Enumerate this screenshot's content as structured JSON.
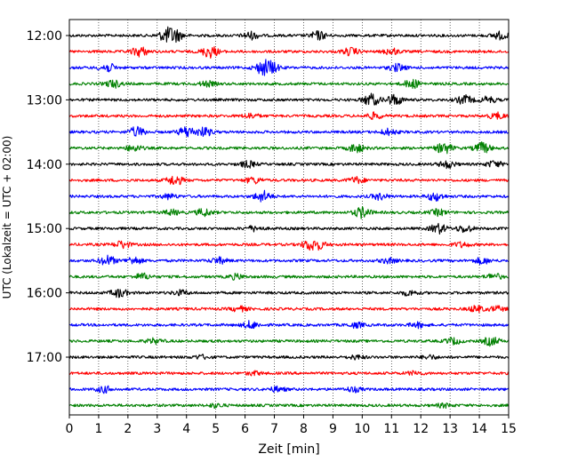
{
  "chart_data": {
    "type": "line",
    "xlabel": "Zeit  [min]",
    "ylabel": "UTC (Lokalzeit = UTC + 02:00)",
    "xlim": [
      0,
      15
    ],
    "x_ticks": [
      0,
      1,
      2,
      3,
      4,
      5,
      6,
      7,
      8,
      9,
      10,
      11,
      12,
      13,
      14,
      15
    ],
    "x_tick_labels": [
      "0",
      "1",
      "2",
      "3",
      "4",
      "5",
      "6",
      "7",
      "8",
      "9",
      "10",
      "11",
      "12",
      "13",
      "14",
      "15"
    ],
    "y_tick_labels": [
      "12:00",
      "13:00",
      "14:00",
      "15:00",
      "16:00",
      "17:00"
    ],
    "y_tick_rows": [
      0,
      4,
      8,
      12,
      16,
      20
    ],
    "row_minutes": 15,
    "row_count": 24,
    "row_colors": [
      "#000000",
      "#ff0000",
      "#0000ff",
      "#008000"
    ],
    "vertical_grid": "dotted",
    "horizontal_grid": false,
    "legend": "none",
    "series": [
      {
        "row": 0,
        "start": "12:00",
        "events": [
          [
            3.3,
            0.9
          ],
          [
            3.6,
            1.0
          ],
          [
            6.2,
            0.6
          ],
          [
            8.5,
            0.7
          ],
          [
            14.7,
            0.6
          ]
        ]
      },
      {
        "row": 1,
        "start": "12:15",
        "events": [
          [
            2.4,
            0.8
          ],
          [
            4.8,
            1.0
          ],
          [
            9.6,
            0.6
          ],
          [
            11.0,
            0.5
          ]
        ]
      },
      {
        "row": 2,
        "start": "12:30",
        "events": [
          [
            1.3,
            0.7
          ],
          [
            6.6,
            1.0
          ],
          [
            6.9,
            0.8
          ],
          [
            11.2,
            0.6
          ]
        ]
      },
      {
        "row": 3,
        "start": "12:45",
        "events": [
          [
            1.5,
            0.6
          ],
          [
            4.7,
            0.4
          ],
          [
            11.7,
            0.7
          ]
        ]
      },
      {
        "row": 4,
        "start": "13:00",
        "events": [
          [
            10.3,
            1.0
          ],
          [
            11.1,
            0.9
          ],
          [
            13.5,
            0.7
          ],
          [
            14.3,
            0.5
          ]
        ]
      },
      {
        "row": 5,
        "start": "13:15",
        "events": [
          [
            6.2,
            0.4
          ],
          [
            10.4,
            0.5
          ],
          [
            14.6,
            0.5
          ]
        ]
      },
      {
        "row": 6,
        "start": "13:30",
        "events": [
          [
            2.3,
            0.8
          ],
          [
            4.0,
            0.9
          ],
          [
            4.6,
            0.7
          ],
          [
            10.9,
            0.5
          ]
        ]
      },
      {
        "row": 7,
        "start": "13:45",
        "events": [
          [
            2.2,
            0.5
          ],
          [
            9.8,
            0.7
          ],
          [
            12.8,
            0.9
          ],
          [
            14.1,
            0.9
          ]
        ]
      },
      {
        "row": 8,
        "start": "14:00",
        "events": [
          [
            6.1,
            0.5
          ],
          [
            12.9,
            0.6
          ],
          [
            14.5,
            0.5
          ]
        ]
      },
      {
        "row": 9,
        "start": "14:15",
        "events": [
          [
            3.6,
            0.8
          ],
          [
            6.3,
            0.5
          ],
          [
            9.8,
            0.5
          ]
        ]
      },
      {
        "row": 10,
        "start": "14:30",
        "events": [
          [
            3.4,
            0.4
          ],
          [
            6.6,
            0.9
          ],
          [
            10.6,
            0.5
          ],
          [
            12.5,
            0.7
          ]
        ]
      },
      {
        "row": 11,
        "start": "14:45",
        "events": [
          [
            3.5,
            0.4
          ],
          [
            4.6,
            0.6
          ],
          [
            10.0,
            0.9
          ],
          [
            12.6,
            0.5
          ]
        ]
      },
      {
        "row": 12,
        "start": "15:00",
        "events": [
          [
            6.3,
            0.4
          ],
          [
            12.6,
            0.8
          ],
          [
            13.5,
            0.6
          ]
        ]
      },
      {
        "row": 13,
        "start": "15:15",
        "events": [
          [
            1.8,
            0.6
          ],
          [
            8.2,
            0.7
          ],
          [
            8.5,
            0.6
          ],
          [
            13.4,
            0.4
          ]
        ]
      },
      {
        "row": 14,
        "start": "15:30",
        "events": [
          [
            1.3,
            0.8
          ],
          [
            2.2,
            0.6
          ],
          [
            5.1,
            0.5
          ],
          [
            10.9,
            0.4
          ],
          [
            14.1,
            0.5
          ]
        ]
      },
      {
        "row": 15,
        "start": "15:45",
        "events": [
          [
            2.5,
            0.5
          ],
          [
            5.7,
            0.4
          ],
          [
            14.5,
            0.5
          ]
        ]
      },
      {
        "row": 16,
        "start": "16:00",
        "events": [
          [
            1.7,
            0.7
          ],
          [
            3.8,
            0.4
          ],
          [
            11.6,
            0.4
          ]
        ]
      },
      {
        "row": 17,
        "start": "16:15",
        "events": [
          [
            5.8,
            0.4
          ],
          [
            13.9,
            0.5
          ],
          [
            14.6,
            0.4
          ]
        ]
      },
      {
        "row": 18,
        "start": "16:30",
        "events": [
          [
            6.2,
            0.6
          ],
          [
            9.8,
            0.4
          ],
          [
            11.9,
            0.4
          ]
        ]
      },
      {
        "row": 19,
        "start": "16:45",
        "events": [
          [
            2.9,
            0.4
          ],
          [
            13.1,
            0.5
          ],
          [
            14.4,
            0.7
          ]
        ]
      },
      {
        "row": 20,
        "start": "17:00",
        "events": [
          [
            4.5,
            0.3
          ],
          [
            9.8,
            0.3
          ],
          [
            12.3,
            0.3
          ]
        ]
      },
      {
        "row": 21,
        "start": "17:15",
        "events": [
          [
            6.3,
            0.3
          ],
          [
            11.8,
            0.3
          ]
        ]
      },
      {
        "row": 22,
        "start": "17:30",
        "events": [
          [
            1.2,
            0.5
          ],
          [
            7.1,
            0.4
          ],
          [
            9.7,
            0.4
          ]
        ]
      },
      {
        "row": 23,
        "start": "17:45",
        "events": [
          [
            5.0,
            0.3
          ],
          [
            12.8,
            0.3
          ]
        ]
      }
    ]
  }
}
